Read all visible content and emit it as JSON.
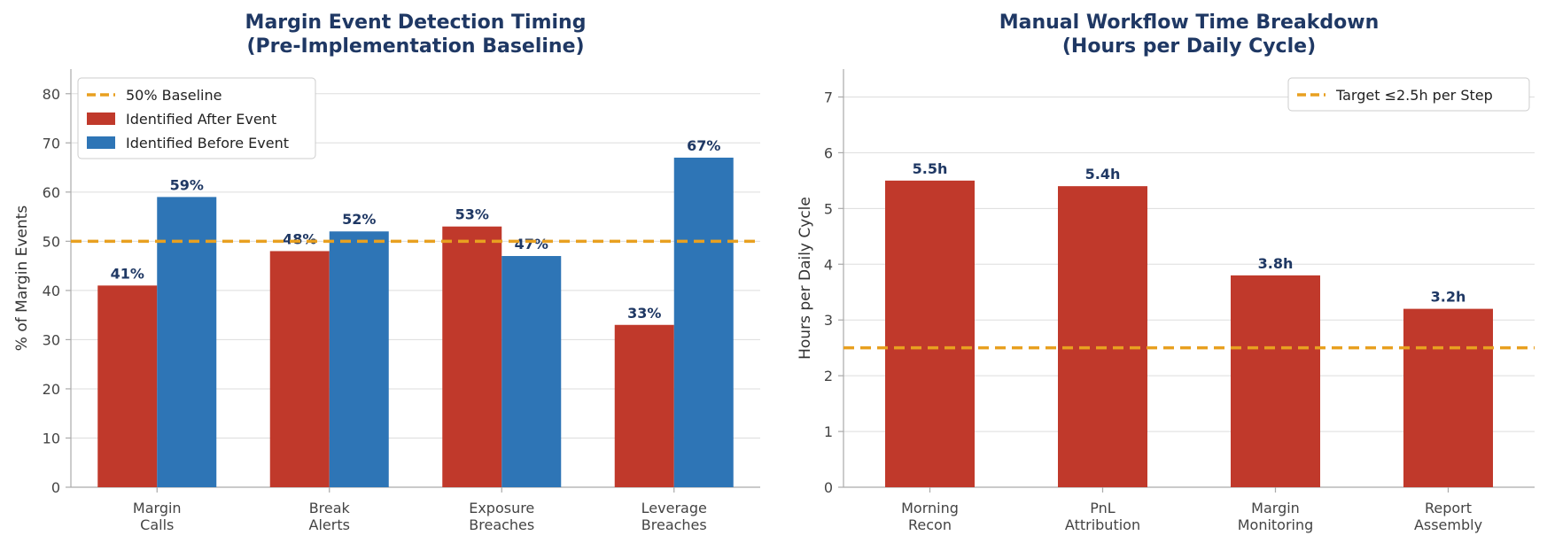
{
  "chart_data": [
    {
      "type": "bar",
      "title": [
        "Margin Event Detection Timing",
        "(Pre-Implementation Baseline)"
      ],
      "ylabel": "% of Margin Events",
      "xlabel": "",
      "categories": [
        [
          "Margin",
          "Calls"
        ],
        [
          "Break",
          "Alerts"
        ],
        [
          "Exposure",
          "Breaches"
        ],
        [
          "Leverage",
          "Breaches"
        ]
      ],
      "series": [
        {
          "name": "Identified After Event",
          "values": [
            41,
            48,
            53,
            33
          ],
          "labels": [
            "41%",
            "48%",
            "53%",
            "33%"
          ],
          "color": "#c0392b"
        },
        {
          "name": "Identified Before Event",
          "values": [
            59,
            52,
            47,
            67
          ],
          "labels": [
            "59%",
            "52%",
            "47%",
            "67%"
          ],
          "color": "#2e75b6"
        }
      ],
      "reference_line": {
        "name": "50% Baseline",
        "value": 50,
        "color": "#e8a020"
      },
      "ylim": [
        0,
        85
      ],
      "yticks": [
        0,
        10,
        20,
        30,
        40,
        50,
        60,
        70,
        80
      ],
      "grid": true,
      "legend": "top-left"
    },
    {
      "type": "bar",
      "title": [
        "Manual Workflow Time Breakdown",
        "(Hours per Daily Cycle)"
      ],
      "ylabel": "Hours per Daily Cycle",
      "xlabel": "",
      "categories": [
        [
          "Morning",
          "Recon"
        ],
        [
          "PnL",
          "Attribution"
        ],
        [
          "Margin",
          "Monitoring"
        ],
        [
          "Report",
          "Assembly"
        ]
      ],
      "series": [
        {
          "name": "",
          "values": [
            5.5,
            5.4,
            3.8,
            3.2
          ],
          "labels": [
            "5.5h",
            "5.4h",
            "3.8h",
            "3.2h"
          ],
          "color": "#c0392b"
        }
      ],
      "reference_line": {
        "name": "Target ≤2.5h per Step",
        "value": 2.5,
        "color": "#e8a020"
      },
      "ylim": [
        0,
        7.5
      ],
      "yticks": [
        0,
        1,
        2,
        3,
        4,
        5,
        6,
        7
      ],
      "grid": true,
      "legend": "top-right"
    }
  ]
}
